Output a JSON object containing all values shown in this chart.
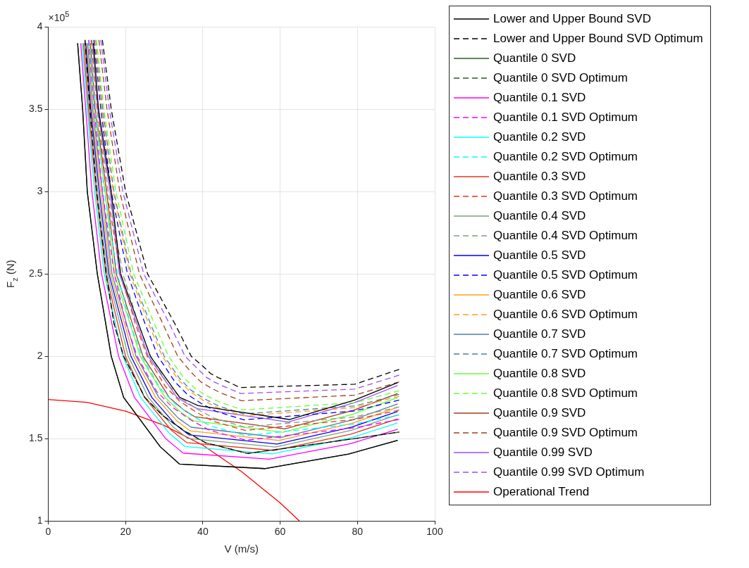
{
  "chart_data": {
    "type": "line",
    "xlabel": "V (m/s)",
    "ylabel": "F$_{z}$ (N)",
    "annotations": [
      "×10$^{5}$"
    ],
    "xlim": [
      0,
      100
    ],
    "xticks": [
      0,
      20,
      40,
      60,
      80,
      100
    ],
    "ylim": [
      1,
      4
    ],
    "yticks": [
      1,
      1.5,
      2,
      2.5,
      3,
      3.5,
      4
    ],
    "grid": true,
    "legend": "right",
    "marker": "none",
    "series": [
      {
        "name": "Lower and Upper Bound SVD",
        "color": "#000000",
        "line_style": "solid",
        "x": [
          7.6,
          8.9,
          10.1,
          12.7,
          16.3,
          19.5,
          29,
          34,
          56,
          77.7,
          90.4,
          null,
          11.7,
          13.0,
          16.3,
          18.7,
          26.4,
          34,
          36.5,
          38.8,
          62.4,
          79.3,
          90.4
        ],
        "values": [
          3.9,
          3.5,
          3.0,
          2.5,
          2.0,
          1.75,
          1.45,
          1.345,
          1.318,
          1.406,
          1.49,
          null,
          3.9,
          3.5,
          3.0,
          2.5,
          2.0,
          1.75,
          1.725,
          1.7,
          1.616,
          1.734,
          1.84
        ]
      },
      {
        "name": "Lower and Upper Bound SVD Optimum",
        "color": "#000000",
        "line_style": "dashed",
        "x": [
          9.5,
          10.8,
          12.5,
          15,
          17,
          19.5,
          25,
          29.6,
          35,
          40.7,
          51.6,
          79.3,
          90.8,
          null,
          14,
          16.3,
          20,
          25.7,
          32.7,
          37,
          40,
          42,
          44,
          46,
          49.6,
          79.3,
          90.8
        ],
        "values": [
          3.92,
          3.5,
          3.0,
          2.5,
          2.2,
          2.0,
          1.75,
          1.64,
          1.55,
          1.475,
          1.41,
          1.5,
          1.54,
          null,
          3.92,
          3.5,
          3.0,
          2.5,
          2.2,
          2.0,
          1.94,
          1.895,
          1.87,
          1.85,
          1.81,
          1.83,
          1.92
        ]
      },
      {
        "name": "Quantile 0 SVD",
        "color": "#2d5a27",
        "line_style": "solid",
        "x": [
          7.6,
          8.9,
          10.1,
          12.7,
          16.3,
          19.5,
          29,
          34,
          56,
          77.7,
          90.4
        ],
        "values": [
          3.9,
          3.5,
          3.0,
          2.5,
          2.0,
          1.75,
          1.45,
          1.345,
          1.318,
          1.406,
          1.49
        ]
      },
      {
        "name": "Quantile 0 SVD Optimum",
        "color": "#2d5a27",
        "line_style": "dashed",
        "x": [
          9.5,
          10.8,
          12.5,
          15,
          17,
          19.5,
          25,
          29.6,
          35,
          40.7,
          51.6,
          79.3,
          90.8
        ],
        "values": [
          3.92,
          3.5,
          3.0,
          2.5,
          2.2,
          2.0,
          1.75,
          1.64,
          1.55,
          1.475,
          1.41,
          1.5,
          1.54
        ]
      },
      {
        "name": "Quantile 0.1 SVD",
        "color": "#ff00ff",
        "line_style": "solid",
        "x": [
          8.4,
          9.7,
          11.3,
          13.8,
          18.2,
          22.3,
          30.4,
          34.9,
          57.2,
          78.0,
          90.4
        ],
        "values": [
          3.9,
          3.5,
          3.0,
          2.5,
          2.0,
          1.75,
          1.5,
          1.412,
          1.375,
          1.468,
          1.557
        ]
      },
      {
        "name": "Quantile 0.1 SVD Optimum",
        "color": "#ff00ff",
        "line_style": "dashed",
        "x": [
          10.4,
          11.9,
          14.0,
          17.1,
          20.1,
          23.0,
          28.0,
          32.1,
          36.8,
          41.8,
          51.2,
          79.3,
          90.8
        ],
        "values": [
          3.92,
          3.5,
          3.0,
          2.5,
          2.2,
          2.0,
          1.788,
          1.691,
          1.614,
          1.55,
          1.49,
          1.566,
          1.616
        ]
      },
      {
        "name": "Quantile 0.2 SVD",
        "color": "#00ffff",
        "line_style": "solid",
        "x": [
          8.8,
          10.1,
          12.0,
          14.5,
          19.3,
          23.9,
          31.3,
          35.4,
          57.9,
          78.2,
          90.4
        ],
        "values": [
          3.9,
          3.5,
          3.0,
          2.5,
          2.0,
          1.75,
          1.533,
          1.452,
          1.407,
          1.504,
          1.595
        ]
      },
      {
        "name": "Quantile 0.2 SVD Optimum",
        "color": "#00ffff",
        "line_style": "dashed",
        "x": [
          10.7,
          12.3,
          14.5,
          17.9,
          21.2,
          24.2,
          29.1,
          33.0,
          37.4,
          42.1,
          51.1,
          79.3,
          90.8
        ],
        "values": [
          3.92,
          3.5,
          3.0,
          2.5,
          2.2,
          2.0,
          1.801,
          1.709,
          1.636,
          1.576,
          1.518,
          1.589,
          1.643
        ]
      },
      {
        "name": "Quantile 0.3 SVD",
        "color": "#e8361b",
        "line_style": "solid",
        "x": [
          9.1,
          10.4,
          12.4,
          14.9,
          20.0,
          24.9,
          31.8,
          35.8,
          58.4,
          78.3,
          90.4
        ],
        "values": [
          3.9,
          3.5,
          3.0,
          2.5,
          2.0,
          1.75,
          1.552,
          1.476,
          1.428,
          1.527,
          1.62
        ]
      },
      {
        "name": "Quantile 0.3 SVD Optimum",
        "color": "#e8361b",
        "line_style": "dashed",
        "x": [
          11.1,
          12.7,
          15.1,
          18.8,
          22.5,
          25.6,
          30.3,
          33.9,
          38.2,
          42.6,
          50.9,
          79.3,
          90.8
        ],
        "values": [
          3.92,
          3.5,
          3.0,
          2.5,
          2.2,
          2.0,
          1.817,
          1.729,
          1.662,
          1.606,
          1.55,
          1.616,
          1.673
        ]
      },
      {
        "name": "Quantile 0.4 SVD",
        "color": "#7f9f7f",
        "line_style": "solid",
        "x": [
          9.4,
          10.7,
          12.8,
          15.3,
          20.7,
          25.9,
          32.3,
          36.1,
          58.8,
          78.4,
          90.4
        ],
        "values": [
          3.9,
          3.5,
          3.0,
          2.5,
          2.0,
          1.75,
          1.571,
          1.501,
          1.449,
          1.55,
          1.644
        ]
      },
      {
        "name": "Quantile 0.4 SVD Optimum",
        "color": "#7f9f7f",
        "line_style": "dashed",
        "x": [
          11.3,
          13.0,
          15.5,
          19.3,
          23.3,
          26.5,
          31.0,
          34.6,
          38.6,
          42.8,
          50.8,
          79.3,
          90.8
        ],
        "values": [
          3.92,
          3.5,
          3.0,
          2.5,
          2.2,
          2.0,
          1.826,
          1.742,
          1.678,
          1.625,
          1.57,
          1.632,
          1.692
        ]
      },
      {
        "name": "Quantile 0.5 SVD",
        "color": "#0000ff",
        "line_style": "solid",
        "x": [
          9.7,
          11.0,
          13.2,
          15.7,
          21.4,
          26.8,
          32.8,
          36.4,
          59.2,
          78.5,
          90.4
        ],
        "values": [
          3.9,
          3.5,
          3.0,
          2.5,
          2.0,
          1.75,
          1.588,
          1.523,
          1.467,
          1.57,
          1.665
        ]
      },
      {
        "name": "Quantile 0.5 SVD Optimum",
        "color": "#0000ff",
        "line_style": "dashed",
        "x": [
          11.8,
          13.6,
          16.3,
          20.5,
          25.0,
          28.4,
          32.7,
          35.9,
          39.6,
          43.4,
          50.6,
          79.3,
          90.8
        ],
        "values": [
          3.92,
          3.5,
          3.0,
          2.5,
          2.2,
          2.0,
          1.847,
          1.77,
          1.713,
          1.666,
          1.614,
          1.668,
          1.734
        ]
      },
      {
        "name": "Quantile 0.6 SVD",
        "color": "#ff9f1a",
        "line_style": "solid",
        "x": [
          9.9,
          11.2,
          13.6,
          16.1,
          22.1,
          27.8,
          33.3,
          36.7,
          59.7,
          78.6,
          90.4
        ],
        "values": [
          3.9,
          3.5,
          3.0,
          2.5,
          2.0,
          1.75,
          1.607,
          1.547,
          1.488,
          1.593,
          1.69
        ]
      },
      {
        "name": "Quantile 0.6 SVD Optimum",
        "color": "#ff9f1a",
        "line_style": "dashed",
        "x": [
          12.1,
          13.9,
          16.8,
          21.1,
          25.9,
          29.5,
          33.6,
          36.7,
          40.1,
          43.7,
          50.5,
          79.3,
          90.8
        ],
        "values": [
          3.92,
          3.5,
          3.0,
          2.5,
          2.2,
          2.0,
          1.858,
          1.785,
          1.732,
          1.689,
          1.638,
          1.688,
          1.757
        ]
      },
      {
        "name": "Quantile 0.7 SVD",
        "color": "#4f7fa0",
        "line_style": "solid",
        "x": [
          10.2,
          11.5,
          14.0,
          16.5,
          22.7,
          28.6,
          33.7,
          37.0,
          60.0,
          78.7,
          90.4
        ],
        "values": [
          3.9,
          3.5,
          3.0,
          2.5,
          2.0,
          1.75,
          1.623,
          1.569,
          1.506,
          1.613,
          1.711
        ]
      },
      {
        "name": "Quantile 0.7 SVD Optimum",
        "color": "#4f7fa0",
        "line_style": "dashed",
        "x": [
          12.2,
          14.1,
          17.0,
          21.4,
          26.4,
          30.0,
          34.0,
          37.0,
          40.4,
          43.9,
          50.4,
          79.3,
          90.8
        ],
        "values": [
          3.92,
          3.5,
          3.0,
          2.5,
          2.2,
          2.0,
          1.864,
          1.793,
          1.742,
          1.7,
          1.65,
          1.698,
          1.768
        ]
      },
      {
        "name": "Quantile 0.8 SVD",
        "color": "#66ff33",
        "line_style": "solid",
        "x": [
          10.6,
          11.9,
          14.7,
          17.1,
          23.8,
          30.2,
          34.6,
          37.6,
          60.7,
          78.9,
          90.4
        ],
        "values": [
          3.9,
          3.5,
          3.0,
          2.5,
          2.0,
          1.75,
          1.654,
          1.608,
          1.539,
          1.649,
          1.749
        ]
      },
      {
        "name": "Quantile 0.8 SVD Optimum",
        "color": "#66ff33",
        "line_style": "dashed",
        "x": [
          12.5,
          14.4,
          17.5,
          22.1,
          27.4,
          31.1,
          34.9,
          37.8,
          40.9,
          44.2,
          50.3,
          79.3,
          90.8
        ],
        "values": [
          3.92,
          3.5,
          3.0,
          2.5,
          2.2,
          2.0,
          1.875,
          1.808,
          1.761,
          1.723,
          1.674,
          1.718,
          1.791
        ]
      },
      {
        "name": "Quantile 0.9 SVD",
        "color": "#a0401a",
        "line_style": "solid",
        "x": [
          10.9,
          12.2,
          15.1,
          17.6,
          24.5,
          31.3,
          35.1,
          37.9,
          61.2,
          79.0,
          90.4
        ],
        "values": [
          3.9,
          3.5,
          3.0,
          2.5,
          2.0,
          1.75,
          1.673,
          1.633,
          1.559,
          1.672,
          1.774
        ]
      },
      {
        "name": "Quantile 0.9 SVD Optimum",
        "color": "#a0401a",
        "line_style": "dashed",
        "x": [
          13.1,
          15.2,
          18.5,
          23.6,
          29.6,
          33.5,
          37.0,
          39.5,
          42.2,
          44.9,
          50.0,
          79.3,
          90.8
        ],
        "values": [
          3.92,
          3.5,
          3.0,
          2.5,
          2.2,
          2.0,
          1.902,
          1.844,
          1.806,
          1.775,
          1.73,
          1.764,
          1.844
        ]
      },
      {
        "name": "Quantile 0.99 SVD",
        "color": "#9a4dff",
        "line_style": "solid",
        "x": [
          11.5,
          12.8,
          16.0,
          18.4,
          25.9,
          33.3,
          36.1,
          38.6,
          62.1,
          79.2,
          90.4
        ],
        "values": [
          3.9,
          3.5,
          3.0,
          2.5,
          2.0,
          1.75,
          1.711,
          1.682,
          1.601,
          1.718,
          1.823
        ]
      },
      {
        "name": "Quantile 0.99 SVD Optimum",
        "color": "#9a4dff",
        "line_style": "dashed",
        "x": [
          13.6,
          15.8,
          19.3,
          24.7,
          31.3,
          35.4,
          38.7,
          40.9,
          43.2,
          45.5,
          49.8,
          79.3,
          90.8
        ],
        "values": [
          3.92,
          3.5,
          3.0,
          2.5,
          2.2,
          2.0,
          1.923,
          1.872,
          1.841,
          1.816,
          1.774,
          1.8,
          1.886
        ]
      },
      {
        "name": "Operational Trend",
        "color": "#ff0000",
        "line_style": "solid",
        "x": [
          0,
          10,
          20,
          30,
          40,
          50,
          60,
          65
        ],
        "values": [
          1.737,
          1.72,
          1.667,
          1.58,
          1.46,
          1.3,
          1.11,
          1.0
        ]
      }
    ]
  }
}
